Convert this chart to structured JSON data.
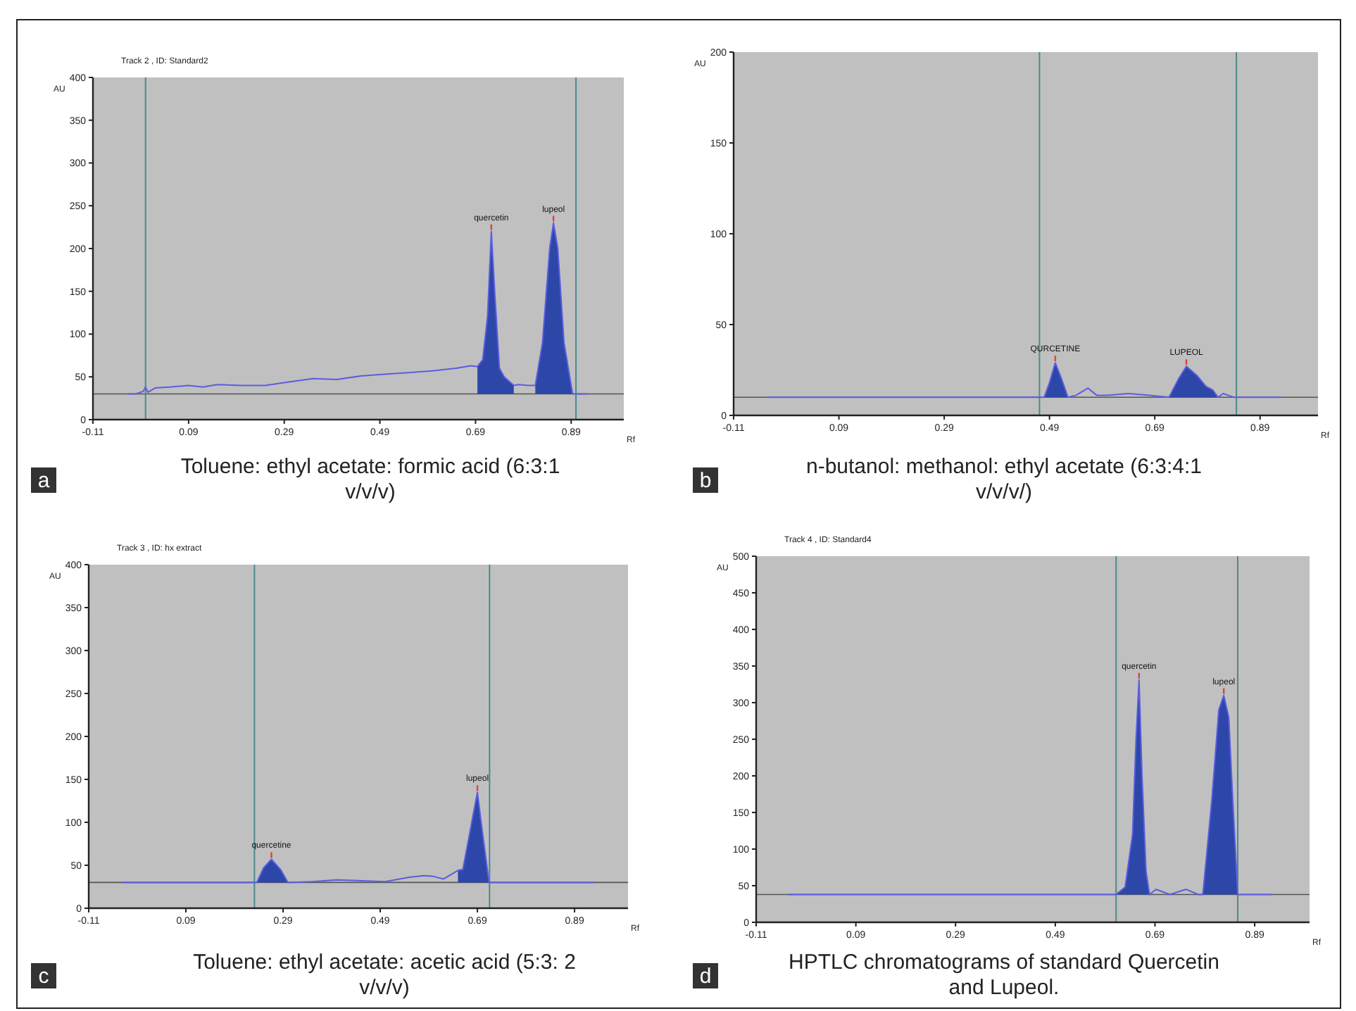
{
  "chart_data": [
    {
      "type": "line",
      "title": "Track 2 , ID: Standard2",
      "xlabel": "Rf",
      "ylabel": "AU",
      "xlim": [
        -0.11,
        1.0
      ],
      "xticks": [
        -0.11,
        0.09,
        0.29,
        0.49,
        0.69,
        0.89
      ],
      "ylim": [
        0,
        400
      ],
      "yticks": [
        0,
        50,
        100,
        150,
        200,
        250,
        300,
        350,
        400
      ],
      "grid": false,
      "ref_lines": [
        {
          "axis": "y",
          "value": 30,
          "color": "#555555"
        },
        {
          "axis": "x",
          "value": 0.0,
          "color": "#4a8a8a"
        },
        {
          "axis": "x",
          "value": 0.9,
          "color": "#4a8a8a"
        }
      ],
      "series": [
        {
          "type": "line",
          "color": "#5c5ce0",
          "x": [
            -0.036,
            -0.02,
            -0.005,
            0.0,
            0.005,
            0.02,
            0.05,
            0.09,
            0.12,
            0.15,
            0.2,
            0.25,
            0.3,
            0.35,
            0.4,
            0.45,
            0.5,
            0.55,
            0.6,
            0.65,
            0.68,
            0.694,
            0.705,
            0.715,
            0.723,
            0.73,
            0.74,
            0.75,
            0.77,
            0.78,
            0.8,
            0.815,
            0.83,
            0.845,
            0.853,
            0.862,
            0.875,
            0.893,
            0.91,
            0.924
          ],
          "values": [
            30,
            30,
            33,
            38,
            32,
            37,
            38,
            40,
            38,
            41,
            40,
            40,
            44,
            48,
            47,
            51,
            53,
            55,
            57,
            60,
            63,
            62,
            70,
            120,
            220,
            150,
            60,
            50,
            40,
            41,
            40,
            40,
            90,
            200,
            230,
            200,
            90,
            30,
            30,
            30
          ]
        },
        {
          "type": "area",
          "color": "#2c47a8",
          "x": [
            0.694,
            0.705,
            0.715,
            0.723,
            0.73,
            0.74,
            0.75,
            0.77
          ],
          "values": [
            62,
            70,
            120,
            220,
            150,
            60,
            50,
            40
          ]
        },
        {
          "type": "area",
          "color": "#2c47a8",
          "x": [
            0.815,
            0.83,
            0.845,
            0.853,
            0.862,
            0.875,
            0.893
          ],
          "values": [
            40,
            90,
            200,
            230,
            200,
            90,
            30
          ]
        }
      ],
      "annotations": [
        "a",
        "Toluene: ethyl acetate: formic acid (6:3:1 v/v/v)",
        {
          "text": "quercetin",
          "x": 0.723,
          "y": 220
        },
        {
          "text": "lupeol",
          "x": 0.853,
          "y": 230
        }
      ]
    },
    {
      "type": "line",
      "xlabel": "Rf",
      "ylabel": "AU",
      "xlim": [
        -0.11,
        1.0
      ],
      "xticks": [
        -0.11,
        0.09,
        0.29,
        0.49,
        0.69,
        0.89
      ],
      "ylim": [
        0,
        200
      ],
      "yticks": [
        0,
        50,
        100,
        150,
        200
      ],
      "grid": false,
      "ref_lines": [
        {
          "axis": "y",
          "value": 10,
          "color": "#555555"
        },
        {
          "axis": "x",
          "value": 0.471,
          "color": "#4a8a8a"
        },
        {
          "axis": "x",
          "value": 0.845,
          "color": "#4a8a8a"
        }
      ],
      "series": [
        {
          "type": "line",
          "color": "#5c5ce0",
          "x": [
            -0.044,
            0.1,
            0.3,
            0.48,
            0.49,
            0.501,
            0.513,
            0.525,
            0.54,
            0.563,
            0.58,
            0.6,
            0.64,
            0.68,
            0.717,
            0.735,
            0.75,
            0.77,
            0.787,
            0.8,
            0.81,
            0.82,
            0.83,
            0.84,
            0.93
          ],
          "values": [
            10,
            10,
            10,
            10,
            18,
            29,
            20,
            10,
            11,
            15,
            11,
            11,
            12,
            11,
            10,
            20,
            27,
            22,
            16,
            14,
            10,
            12,
            11,
            10,
            10
          ]
        },
        {
          "type": "area",
          "color": "#2c47a8",
          "x": [
            0.48,
            0.49,
            0.501,
            0.513,
            0.525
          ],
          "values": [
            10,
            18,
            29,
            20,
            10
          ]
        },
        {
          "type": "area",
          "color": "#2c47a8",
          "x": [
            0.717,
            0.735,
            0.75,
            0.77,
            0.787,
            0.8,
            0.81
          ],
          "values": [
            10,
            20,
            27,
            22,
            16,
            14,
            10
          ]
        }
      ],
      "annotations": [
        "b",
        "n-butanol: methanol: ethyl acetate (6:3:4:1 v/v/v/)",
        {
          "text": "QURCETINE",
          "x": 0.501,
          "y": 29
        },
        {
          "text": "LUPEOL",
          "x": 0.75,
          "y": 27
        }
      ]
    },
    {
      "type": "line",
      "title": "Track 3 , ID: hx extract",
      "xlabel": "Rf",
      "ylabel": "AU",
      "xlim": [
        -0.11,
        1.0
      ],
      "xticks": [
        -0.11,
        0.09,
        0.29,
        0.49,
        0.69,
        0.89
      ],
      "ylim": [
        0,
        400
      ],
      "yticks": [
        0,
        50,
        100,
        150,
        200,
        250,
        300,
        350,
        400
      ],
      "grid": false,
      "ref_lines": [
        {
          "axis": "y",
          "value": 30,
          "color": "#555555"
        },
        {
          "axis": "x",
          "value": 0.231,
          "color": "#4a8a8a"
        },
        {
          "axis": "x",
          "value": 0.715,
          "color": "#4a8a8a"
        }
      ],
      "series": [
        {
          "type": "line",
          "color": "#5c5ce0",
          "x": [
            -0.042,
            0.1,
            0.236,
            0.25,
            0.266,
            0.285,
            0.3,
            0.35,
            0.4,
            0.45,
            0.5,
            0.55,
            0.58,
            0.6,
            0.62,
            0.65,
            0.66,
            0.675,
            0.69,
            0.7,
            0.714,
            0.8,
            0.93
          ],
          "values": [
            30,
            30,
            30,
            47,
            57,
            45,
            30,
            31,
            33,
            32,
            31,
            36,
            38,
            37,
            34,
            44,
            45,
            90,
            135,
            90,
            30,
            30,
            30
          ]
        },
        {
          "type": "area",
          "color": "#2c47a8",
          "x": [
            0.236,
            0.25,
            0.266,
            0.285,
            0.3
          ],
          "values": [
            30,
            47,
            57,
            45,
            30
          ]
        },
        {
          "type": "area",
          "color": "#2c47a8",
          "x": [
            0.65,
            0.66,
            0.675,
            0.69,
            0.7,
            0.714
          ],
          "values": [
            44,
            45,
            90,
            135,
            90,
            30
          ]
        }
      ],
      "annotations": [
        "c",
        "Toluene: ethyl acetate: acetic acid (5:3: 2 v/v/v)",
        {
          "text": "quercetine",
          "x": 0.266,
          "y": 57
        },
        {
          "text": "lupeol",
          "x": 0.69,
          "y": 135
        }
      ]
    },
    {
      "type": "line",
      "title": "Track 4 , ID: Standard4",
      "xlabel": "Rf",
      "ylabel": "AU",
      "xlim": [
        -0.11,
        1.0
      ],
      "xticks": [
        -0.11,
        0.09,
        0.29,
        0.49,
        0.69,
        0.89
      ],
      "ylim": [
        0,
        500
      ],
      "yticks": [
        0,
        50,
        100,
        150,
        200,
        250,
        300,
        350,
        400,
        450,
        500
      ],
      "grid": false,
      "ref_lines": [
        {
          "axis": "y",
          "value": 38,
          "color": "#555555"
        },
        {
          "axis": "x",
          "value": 0.612,
          "color": "#4a8a8a"
        },
        {
          "axis": "x",
          "value": 0.856,
          "color": "#4a8a8a"
        }
      ],
      "series": [
        {
          "type": "line",
          "color": "#5c5ce0",
          "x": [
            -0.046,
            0.3,
            0.612,
            0.63,
            0.645,
            0.652,
            0.658,
            0.664,
            0.672,
            0.679,
            0.692,
            0.72,
            0.752,
            0.777,
            0.786,
            0.804,
            0.818,
            0.828,
            0.838,
            0.846,
            0.856,
            0.925
          ],
          "values": [
            38,
            38,
            38,
            48,
            120,
            250,
            331,
            200,
            70,
            38,
            45,
            38,
            45,
            38,
            38,
            167,
            290,
            310,
            280,
            167,
            38,
            38
          ]
        },
        {
          "type": "area",
          "color": "#2c47a8",
          "x": [
            0.612,
            0.63,
            0.645,
            0.652,
            0.658,
            0.664,
            0.672,
            0.679
          ],
          "values": [
            38,
            48,
            120,
            250,
            331,
            200,
            70,
            38
          ]
        },
        {
          "type": "area",
          "color": "#2c47a8",
          "x": [
            0.786,
            0.804,
            0.818,
            0.828,
            0.838,
            0.846,
            0.856
          ],
          "values": [
            38,
            167,
            290,
            310,
            280,
            167,
            38
          ]
        }
      ],
      "annotations": [
        "d",
        "HPTLC chromatograms of standard Quercetin and Lupeol.",
        {
          "text": "quercetin",
          "x": 0.658,
          "y": 331
        },
        {
          "text": "lupeol",
          "x": 0.828,
          "y": 310
        }
      ]
    }
  ]
}
